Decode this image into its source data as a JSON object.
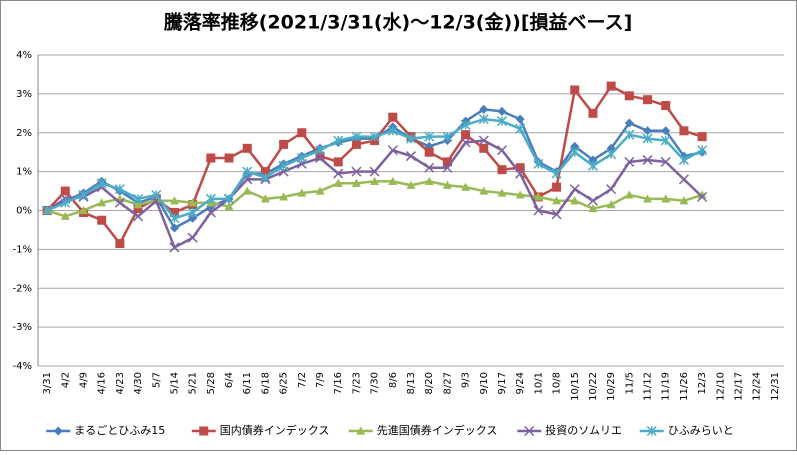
{
  "chart_data": {
    "type": "line",
    "title": "騰落率推移(2021/3/31(水)～12/3(金))[損益ベース]",
    "categories": [
      "3/31",
      "4/2",
      "4/9",
      "4/16",
      "4/23",
      "4/30",
      "5/7",
      "5/14",
      "5/21",
      "5/28",
      "6/4",
      "6/11",
      "6/18",
      "6/25",
      "7/2",
      "7/9",
      "7/16",
      "7/23",
      "7/30",
      "8/6",
      "8/13",
      "8/20",
      "8/27",
      "9/3",
      "9/10",
      "9/17",
      "9/24",
      "10/1",
      "10/8",
      "10/15",
      "10/22",
      "10/29",
      "11/5",
      "11/12",
      "11/19",
      "11/26",
      "12/3",
      "12/10",
      "12/17",
      "12/24",
      "12/31"
    ],
    "series": [
      {
        "name": "まるごとひふみ15",
        "color": "#4a7ebb",
        "marker": "diamond",
        "values": [
          0,
          0.25,
          0.45,
          0.75,
          0.5,
          0.2,
          0.35,
          -0.45,
          -0.2,
          0.1,
          0.3,
          0.95,
          0.95,
          1.2,
          1.4,
          1.6,
          1.75,
          1.85,
          1.85,
          2.15,
          1.85,
          1.65,
          1.8,
          2.3,
          2.6,
          2.55,
          2.35,
          1.25,
          1.0,
          1.65,
          1.3,
          1.6,
          2.25,
          2.05,
          2.05,
          1.4,
          1.5,
          null,
          null,
          null,
          null
        ]
      },
      {
        "name": "国内債券インデックス",
        "color": "#be4b48",
        "marker": "square",
        "values": [
          0,
          0.5,
          -0.05,
          -0.25,
          -0.85,
          0.05,
          0.3,
          -0.05,
          0.15,
          1.35,
          1.35,
          1.6,
          1.0,
          1.7,
          2.0,
          1.4,
          1.25,
          1.7,
          1.8,
          2.4,
          1.9,
          1.5,
          1.25,
          1.95,
          1.6,
          1.05,
          1.1,
          0.35,
          0.6,
          3.1,
          2.5,
          3.2,
          2.95,
          2.85,
          2.7,
          2.05,
          1.9,
          null,
          null,
          null,
          null
        ]
      },
      {
        "name": "先進国債券インデックス",
        "color": "#98b954",
        "marker": "triangle",
        "values": [
          0,
          -0.15,
          0.0,
          0.2,
          0.3,
          0.15,
          0.25,
          0.25,
          0.2,
          0.2,
          0.1,
          0.5,
          0.3,
          0.35,
          0.45,
          0.5,
          0.7,
          0.7,
          0.75,
          0.75,
          0.65,
          0.75,
          0.65,
          0.6,
          0.5,
          0.45,
          0.4,
          0.35,
          0.25,
          0.25,
          0.05,
          0.15,
          0.4,
          0.3,
          0.3,
          0.25,
          0.4,
          null,
          null,
          null,
          null
        ]
      },
      {
        "name": "投資のソムリエ",
        "color": "#7d60a0",
        "marker": "x",
        "values": [
          0,
          0.3,
          0.35,
          0.6,
          0.2,
          -0.15,
          0.25,
          -0.95,
          -0.7,
          -0.05,
          0.3,
          0.8,
          0.8,
          1.0,
          1.2,
          1.35,
          0.95,
          1.0,
          1.0,
          1.55,
          1.4,
          1.1,
          1.1,
          1.75,
          1.8,
          1.55,
          0.95,
          0.0,
          -0.1,
          0.55,
          0.25,
          0.55,
          1.25,
          1.3,
          1.25,
          0.8,
          0.35,
          null,
          null,
          null,
          null
        ]
      },
      {
        "name": "ひふみらいと",
        "color": "#4bacc6",
        "marker": "star",
        "values": [
          0,
          0.2,
          0.4,
          0.7,
          0.55,
          0.3,
          0.4,
          -0.2,
          -0.05,
          0.3,
          0.3,
          1.0,
          0.85,
          1.15,
          1.35,
          1.55,
          1.8,
          1.9,
          1.9,
          2.05,
          1.85,
          1.9,
          1.9,
          2.2,
          2.35,
          2.3,
          2.1,
          1.2,
          0.95,
          1.5,
          1.15,
          1.45,
          1.95,
          1.85,
          1.8,
          1.3,
          1.55,
          null,
          null,
          null,
          null
        ]
      }
    ],
    "ylim": [
      -4,
      4
    ],
    "yticks": [
      {
        "value": -4,
        "label": "-4%"
      },
      {
        "value": -3,
        "label": "-3%"
      },
      {
        "value": -2,
        "label": "-2%"
      },
      {
        "value": -1,
        "label": "-1%"
      },
      {
        "value": 0,
        "label": "0%"
      },
      {
        "value": 1,
        "label": "1%"
      },
      {
        "value": 2,
        "label": "2%"
      },
      {
        "value": 3,
        "label": "3%"
      },
      {
        "value": 4,
        "label": "4%"
      }
    ],
    "grid": true,
    "legend": "bottom"
  }
}
